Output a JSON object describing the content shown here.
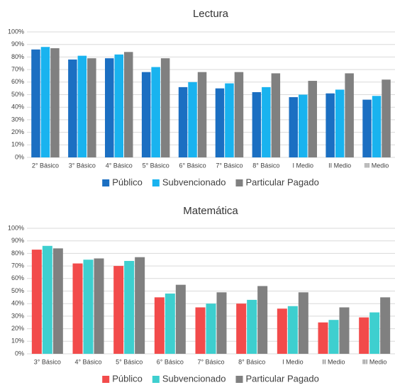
{
  "chart_data": [
    {
      "type": "bar",
      "title": "Lectura",
      "categories": [
        "2° Básico",
        "3° Básico",
        "4° Básico",
        "5° Básico",
        "6° Básico",
        "7° Básico",
        "8° Básico",
        "I Medio",
        "II Medio",
        "III Medio"
      ],
      "series": [
        {
          "name": "Público",
          "color": "#1b6fc2",
          "values": [
            86,
            78,
            79,
            68,
            56,
            55,
            52,
            48,
            51,
            46
          ]
        },
        {
          "name": "Subvencionado",
          "color": "#19b3ef",
          "values": [
            88,
            81,
            82,
            72,
            60,
            59,
            56,
            50,
            54,
            49
          ]
        },
        {
          "name": "Particular Pagado",
          "color": "#808080",
          "values": [
            87,
            79,
            84,
            79,
            68,
            68,
            67,
            61,
            67,
            62
          ]
        }
      ],
      "ylim": [
        0,
        100
      ],
      "yticks": [
        {
          "value": 0,
          "label": "0%"
        },
        {
          "value": 10,
          "label": "10%"
        },
        {
          "value": 20,
          "label": "20%"
        },
        {
          "value": 30,
          "label": "30%"
        },
        {
          "value": 40,
          "label": "40%"
        },
        {
          "value": 50,
          "label": "50%"
        },
        {
          "value": 60,
          "label": "60%"
        },
        {
          "value": 70,
          "label": "70%"
        },
        {
          "value": 80,
          "label": "80%"
        },
        {
          "value": 90,
          "label": "90%"
        },
        {
          "value": 100,
          "label": "100%"
        }
      ],
      "grid": true
    },
    {
      "type": "bar",
      "title": "Matemática",
      "categories": [
        "3° Básico",
        "4° Básico",
        "5° Básico",
        "6° Básico",
        "7° Básico",
        "8° Básico",
        "I Medio",
        "II Medio",
        "III Medio"
      ],
      "series": [
        {
          "name": "Público",
          "color": "#f24b4b",
          "values": [
            83,
            72,
            70,
            45,
            37,
            40,
            36,
            25,
            29
          ]
        },
        {
          "name": "Subvencionado",
          "color": "#3ecfcf",
          "values": [
            86,
            75,
            74,
            48,
            40,
            43,
            38,
            27,
            33
          ]
        },
        {
          "name": "Particular Pagado",
          "color": "#808080",
          "values": [
            84,
            76,
            77,
            55,
            49,
            54,
            49,
            37,
            45
          ]
        }
      ],
      "ylim": [
        0,
        100
      ],
      "yticks": [
        {
          "value": 0,
          "label": "0%"
        },
        {
          "value": 10,
          "label": "10%"
        },
        {
          "value": 20,
          "label": "20%"
        },
        {
          "value": 30,
          "label": "30%"
        },
        {
          "value": 40,
          "label": "40%"
        },
        {
          "value": 50,
          "label": "50%"
        },
        {
          "value": 60,
          "label": "60%"
        },
        {
          "value": 70,
          "label": "70%"
        },
        {
          "value": 80,
          "label": "80%"
        },
        {
          "value": 90,
          "label": "90%"
        },
        {
          "value": 100,
          "label": "100%"
        }
      ],
      "grid": true
    }
  ]
}
